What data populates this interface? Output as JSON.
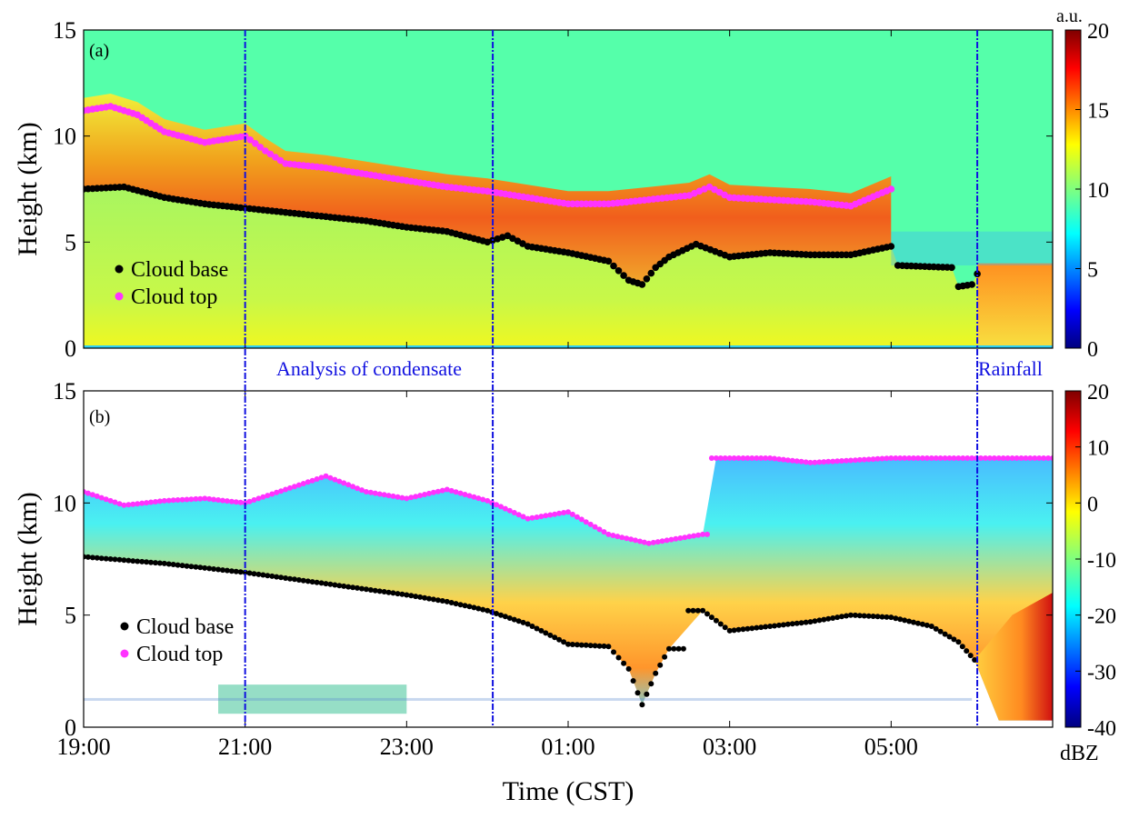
{
  "chart_data": [
    {
      "type": "heatmap",
      "panel_label": "(a)",
      "ylabel": "Height (km)",
      "xlabel": "Time (CST)",
      "ylim": [
        0,
        15
      ],
      "yticks": [
        "0",
        "5",
        "10",
        "15"
      ],
      "xlim": [
        "19:00",
        "07:00"
      ],
      "xticks": [
        "19:00",
        "21:00",
        "23:00",
        "01:00",
        "03:00",
        "05:00"
      ],
      "colorbar": {
        "unit": "a.u.",
        "range": [
          0,
          20
        ],
        "ticks": [
          "0",
          "5",
          "10",
          "15",
          "20"
        ],
        "colormap": "jet"
      },
      "legend": {
        "placement": "left-middle",
        "entries": [
          "Cloud base",
          "Cloud top"
        ]
      },
      "series": [
        {
          "name": "Cloud base",
          "color": "#000000",
          "points": [
            [
              "19:00",
              7.5
            ],
            [
              "19:30",
              7.6
            ],
            [
              "20:00",
              7.1
            ],
            [
              "20:30",
              6.8
            ],
            [
              "21:00",
              6.6
            ],
            [
              "21:30",
              6.4
            ],
            [
              "22:00",
              6.2
            ],
            [
              "22:30",
              6.0
            ],
            [
              "23:00",
              5.7
            ],
            [
              "23:30",
              5.5
            ],
            [
              "00:00",
              5.0
            ],
            [
              "00:15",
              5.3
            ],
            [
              "00:30",
              4.8
            ],
            [
              "01:00",
              4.5
            ],
            [
              "01:30",
              4.1
            ],
            [
              "01:45",
              3.2
            ],
            [
              "01:55",
              3.0
            ],
            [
              "02:05",
              3.8
            ],
            [
              "02:15",
              4.3
            ],
            [
              "02:35",
              4.9
            ],
            [
              "03:00",
              4.3
            ],
            [
              "03:30",
              4.5
            ],
            [
              "04:00",
              4.4
            ],
            [
              "04:30",
              4.4
            ],
            [
              "05:00",
              4.8
            ],
            [
              "05:05",
              3.9
            ],
            [
              "05:45",
              3.8
            ],
            [
              "05:50",
              2.9
            ],
            [
              "06:00",
              3.0
            ],
            [
              "06:04",
              3.5
            ]
          ]
        },
        {
          "name": "Cloud top",
          "color": "#ff33ff",
          "points": [
            [
              "19:00",
              11.2
            ],
            [
              "19:20",
              11.4
            ],
            [
              "19:40",
              11.0
            ],
            [
              "20:00",
              10.2
            ],
            [
              "20:30",
              9.7
            ],
            [
              "21:00",
              10.0
            ],
            [
              "21:15",
              9.3
            ],
            [
              "21:30",
              8.7
            ],
            [
              "22:00",
              8.5
            ],
            [
              "22:30",
              8.2
            ],
            [
              "23:00",
              7.9
            ],
            [
              "23:30",
              7.6
            ],
            [
              "00:00",
              7.4
            ],
            [
              "00:30",
              7.1
            ],
            [
              "01:00",
              6.8
            ],
            [
              "01:30",
              6.8
            ],
            [
              "02:00",
              7.0
            ],
            [
              "02:30",
              7.2
            ],
            [
              "02:45",
              7.6
            ],
            [
              "03:00",
              7.1
            ],
            [
              "03:30",
              7.0
            ],
            [
              "04:00",
              6.9
            ],
            [
              "04:30",
              6.7
            ],
            [
              "05:00",
              7.5
            ]
          ]
        }
      ],
      "vertical_markers": [
        {
          "time": "21:00",
          "color": "#1010e0"
        },
        {
          "time": "00:04",
          "color": "#1010e0"
        },
        {
          "time": "06:04",
          "color": "#1010e0"
        }
      ],
      "annotations": [
        "Analysis of condensate",
        "Rainfall"
      ]
    },
    {
      "type": "heatmap",
      "panel_label": "(b)",
      "ylabel": "Height (km)",
      "xlabel": "Time (CST)",
      "ylim": [
        0,
        15
      ],
      "yticks": [
        "0",
        "5",
        "10",
        "15"
      ],
      "xlim": [
        "19:00",
        "07:00"
      ],
      "xticks": [
        "19:00",
        "21:00",
        "23:00",
        "01:00",
        "03:00",
        "05:00"
      ],
      "colorbar": {
        "unit": "dBZ",
        "range": [
          -40,
          20
        ],
        "ticks": [
          "-40",
          "-30",
          "-20",
          "-10",
          "0",
          "10",
          "20"
        ],
        "colormap": "jet"
      },
      "legend": {
        "placement": "left-middle",
        "entries": [
          "Cloud base",
          "Cloud top"
        ]
      },
      "series": [
        {
          "name": "Cloud base",
          "color": "#000000",
          "points": [
            [
              "19:00",
              7.6
            ],
            [
              "20:00",
              7.3
            ],
            [
              "21:00",
              6.9
            ],
            [
              "22:00",
              6.4
            ],
            [
              "23:00",
              5.9
            ],
            [
              "23:30",
              5.6
            ],
            [
              "00:00",
              5.2
            ],
            [
              "00:30",
              4.6
            ],
            [
              "01:00",
              3.7
            ],
            [
              "01:30",
              3.6
            ],
            [
              "01:45",
              2.6
            ],
            [
              "01:55",
              1.0
            ],
            [
              "02:05",
              2.4
            ],
            [
              "02:15",
              3.5
            ],
            [
              "02:40",
              5.2
            ],
            [
              "03:00",
              4.3
            ],
            [
              "03:30",
              4.5
            ],
            [
              "04:00",
              4.7
            ],
            [
              "04:30",
              5.0
            ],
            [
              "05:00",
              4.9
            ],
            [
              "05:30",
              4.5
            ],
            [
              "05:50",
              3.8
            ],
            [
              "06:02",
              3.0
            ]
          ]
        },
        {
          "name": "Cloud top",
          "color": "#ff33ff",
          "points": [
            [
              "19:00",
              10.5
            ],
            [
              "19:30",
              9.9
            ],
            [
              "20:00",
              10.1
            ],
            [
              "20:30",
              10.2
            ],
            [
              "21:00",
              10.0
            ],
            [
              "21:30",
              10.6
            ],
            [
              "22:00",
              11.2
            ],
            [
              "22:30",
              10.5
            ],
            [
              "23:00",
              10.2
            ],
            [
              "23:30",
              10.6
            ],
            [
              "00:00",
              10.1
            ],
            [
              "00:30",
              9.3
            ],
            [
              "01:00",
              9.6
            ],
            [
              "01:30",
              8.6
            ],
            [
              "02:00",
              8.2
            ],
            [
              "02:40",
              8.6
            ],
            [
              "02:50",
              12.0
            ],
            [
              "03:30",
              12.0
            ],
            [
              "04:00",
              11.8
            ],
            [
              "05:00",
              12.0
            ],
            [
              "06:00",
              12.0
            ],
            [
              "07:00",
              12.0
            ]
          ]
        }
      ]
    }
  ]
}
